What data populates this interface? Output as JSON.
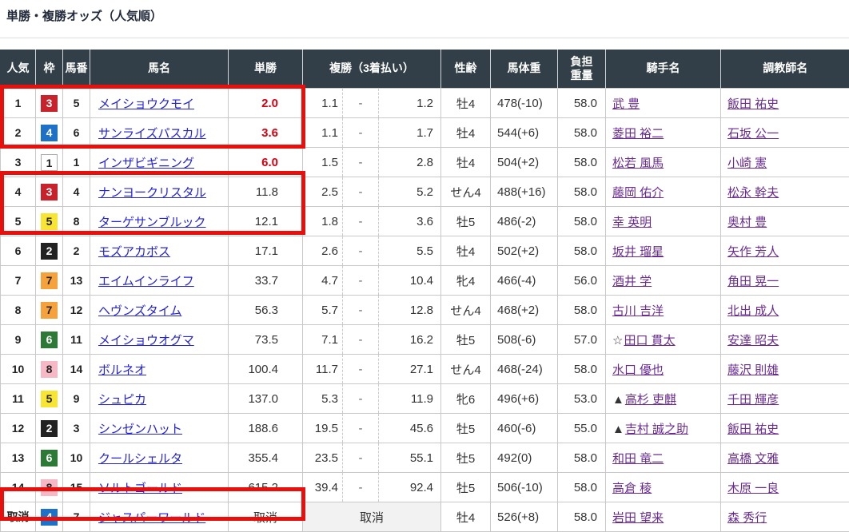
{
  "page": {
    "title": "単勝・複勝オッズ（人気順）"
  },
  "colors": {
    "header_bg": "#323e48",
    "highlight_box": "#e8100c",
    "win_odds_red": "#d50010",
    "horse_link": "#2323dc",
    "people_link": "#6a2c91",
    "frames": {
      "1": {
        "bg": "#ffffff",
        "fg": "#222222",
        "border": "#aaaaaa"
      },
      "2": {
        "bg": "#222222",
        "fg": "#ffffff"
      },
      "3": {
        "bg": "#c8232c",
        "fg": "#ffffff"
      },
      "4": {
        "bg": "#1d71c7",
        "fg": "#ffffff"
      },
      "5": {
        "bg": "#f7e433",
        "fg": "#222222"
      },
      "6": {
        "bg": "#2c7a36",
        "fg": "#ffffff"
      },
      "7": {
        "bg": "#f5a23c",
        "fg": "#222222"
      },
      "8": {
        "bg": "#f5b8c4",
        "fg": "#222222"
      }
    }
  },
  "highlights": [
    {
      "rows": "人気1-2",
      "color": "#e8100c"
    },
    {
      "rows": "人気4-5",
      "color": "#e8100c"
    },
    {
      "rows": "取消",
      "color": "#e8100c"
    }
  ],
  "table": {
    "headers": {
      "rank": "人気",
      "frame": "枠",
      "horse_no": "馬番",
      "horse": "馬名",
      "win": "単勝",
      "place": "複勝（3着払い）",
      "sex_age": "性齢",
      "weight": "馬体重",
      "carry": "負担重量",
      "jockey": "騎手名",
      "trainer": "調教師名"
    },
    "place_separator": "-",
    "rows": [
      {
        "rank": "1",
        "frame": 3,
        "horse_no": "5",
        "horse": "メイショウクモイ",
        "win": "2.0",
        "win_red": true,
        "place_low": "1.1",
        "place_high": "1.2",
        "sex_age": "牡4",
        "weight": "478(-10)",
        "carry": "58.0",
        "jockey_prefix": "",
        "jockey": "武 豊",
        "trainer": "飯田 祐史"
      },
      {
        "rank": "2",
        "frame": 4,
        "horse_no": "6",
        "horse": "サンライズパスカル",
        "win": "3.6",
        "win_red": true,
        "place_low": "1.1",
        "place_high": "1.7",
        "sex_age": "牡4",
        "weight": "544(+6)",
        "carry": "58.0",
        "jockey_prefix": "",
        "jockey": "菱田 裕二",
        "trainer": "石坂 公一"
      },
      {
        "rank": "3",
        "frame": 1,
        "horse_no": "1",
        "horse": "インザビギニング",
        "win": "6.0",
        "win_red": true,
        "place_low": "1.5",
        "place_high": "2.8",
        "sex_age": "牡4",
        "weight": "504(+2)",
        "carry": "58.0",
        "jockey_prefix": "",
        "jockey": "松若 風馬",
        "trainer": "小崎 憲"
      },
      {
        "rank": "4",
        "frame": 3,
        "horse_no": "4",
        "horse": "ナンヨークリスタル",
        "win": "11.8",
        "win_red": false,
        "place_low": "2.5",
        "place_high": "5.2",
        "sex_age": "せん4",
        "weight": "488(+16)",
        "carry": "58.0",
        "jockey_prefix": "",
        "jockey": "藤岡 佑介",
        "trainer": "松永 幹夫"
      },
      {
        "rank": "5",
        "frame": 5,
        "horse_no": "8",
        "horse": "ターゲサンブルック",
        "win": "12.1",
        "win_red": false,
        "place_low": "1.8",
        "place_high": "3.6",
        "sex_age": "牡5",
        "weight": "486(-2)",
        "carry": "58.0",
        "jockey_prefix": "",
        "jockey": "幸 英明",
        "trainer": "奥村 豊"
      },
      {
        "rank": "6",
        "frame": 2,
        "horse_no": "2",
        "horse": "モズアカボス",
        "win": "17.1",
        "win_red": false,
        "place_low": "2.6",
        "place_high": "5.5",
        "sex_age": "牡4",
        "weight": "502(+2)",
        "carry": "58.0",
        "jockey_prefix": "",
        "jockey": "坂井 瑠星",
        "trainer": "矢作 芳人"
      },
      {
        "rank": "7",
        "frame": 7,
        "horse_no": "13",
        "horse": "エイムインライフ",
        "win": "33.7",
        "win_red": false,
        "place_low": "4.7",
        "place_high": "10.4",
        "sex_age": "牝4",
        "weight": "466(-4)",
        "carry": "56.0",
        "jockey_prefix": "",
        "jockey": "酒井 学",
        "trainer": "角田 晃一"
      },
      {
        "rank": "8",
        "frame": 7,
        "horse_no": "12",
        "horse": "ヘヴンズタイム",
        "win": "56.3",
        "win_red": false,
        "place_low": "5.7",
        "place_high": "12.8",
        "sex_age": "せん4",
        "weight": "468(+2)",
        "carry": "58.0",
        "jockey_prefix": "",
        "jockey": "古川 吉洋",
        "trainer": "北出 成人"
      },
      {
        "rank": "9",
        "frame": 6,
        "horse_no": "11",
        "horse": "メイショウオグマ",
        "win": "73.5",
        "win_red": false,
        "place_low": "7.1",
        "place_high": "16.2",
        "sex_age": "牡5",
        "weight": "508(-6)",
        "carry": "57.0",
        "jockey_prefix": "☆",
        "jockey": "田口 貫太",
        "trainer": "安達 昭夫"
      },
      {
        "rank": "10",
        "frame": 8,
        "horse_no": "14",
        "horse": "ボルネオ",
        "win": "100.4",
        "win_red": false,
        "place_low": "11.7",
        "place_high": "27.1",
        "sex_age": "せん4",
        "weight": "468(-24)",
        "carry": "58.0",
        "jockey_prefix": "",
        "jockey": "水口 優也",
        "trainer": "藤沢 則雄"
      },
      {
        "rank": "11",
        "frame": 5,
        "horse_no": "9",
        "horse": "シュピカ",
        "win": "137.0",
        "win_red": false,
        "place_low": "5.3",
        "place_high": "11.9",
        "sex_age": "牝6",
        "weight": "496(+6)",
        "carry": "53.0",
        "jockey_prefix": "▲",
        "jockey": "高杉 吏麒",
        "trainer": "千田 輝彦"
      },
      {
        "rank": "12",
        "frame": 2,
        "horse_no": "3",
        "horse": "シンゼンハット",
        "win": "188.6",
        "win_red": false,
        "place_low": "19.5",
        "place_high": "45.6",
        "sex_age": "牡5",
        "weight": "460(-6)",
        "carry": "55.0",
        "jockey_prefix": "▲",
        "jockey": "吉村 誠之助",
        "trainer": "飯田 祐史"
      },
      {
        "rank": "13",
        "frame": 6,
        "horse_no": "10",
        "horse": "クールシェルタ",
        "win": "355.4",
        "win_red": false,
        "place_low": "23.5",
        "place_high": "55.1",
        "sex_age": "牡5",
        "weight": "492(0)",
        "carry": "58.0",
        "jockey_prefix": "",
        "jockey": "和田 竜二",
        "trainer": "高橋 文雅"
      },
      {
        "rank": "14",
        "frame": 8,
        "horse_no": "15",
        "horse": "ソルトゴールド",
        "win": "615.2",
        "win_red": false,
        "place_low": "39.4",
        "place_high": "92.4",
        "sex_age": "牡5",
        "weight": "506(-10)",
        "carry": "58.0",
        "jockey_prefix": "",
        "jockey": "高倉 稜",
        "trainer": "木原 一良"
      },
      {
        "rank": "取消",
        "frame": 4,
        "horse_no": "7",
        "horse": "ジャスパーワールド",
        "win": "取消",
        "win_red": false,
        "cancelled": true,
        "place": "取消",
        "sex_age": "牡4",
        "weight": "526(+8)",
        "carry": "58.0",
        "jockey_prefix": "",
        "jockey": "岩田 望来",
        "trainer": "森 秀行"
      }
    ]
  }
}
